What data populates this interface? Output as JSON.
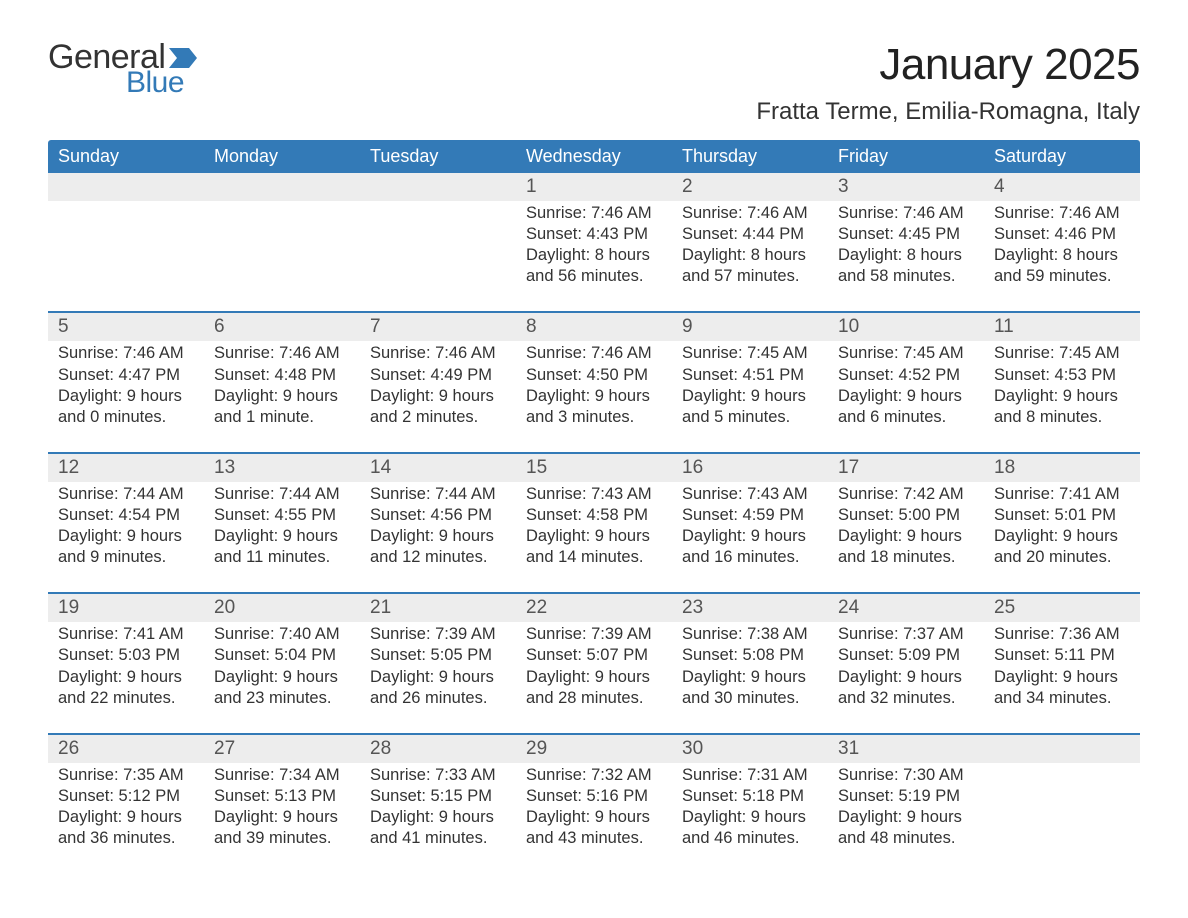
{
  "logo": {
    "general": "General",
    "blue": "Blue",
    "flag_color": "#337ab7"
  },
  "title": "January 2025",
  "location": "Fratta Terme, Emilia-Romagna, Italy",
  "colors": {
    "header_bg": "#337ab7",
    "header_text": "#ffffff",
    "daynum_bg": "#ededed",
    "row_border": "#337ab7",
    "body_text": "#333333",
    "daynum_text": "#555555",
    "background": "#ffffff"
  },
  "fonts": {
    "title_size_pt": 33,
    "location_size_pt": 18,
    "header_size_pt": 14,
    "daynum_size_pt": 14,
    "details_size_pt": 12
  },
  "day_headers": [
    "Sunday",
    "Monday",
    "Tuesday",
    "Wednesday",
    "Thursday",
    "Friday",
    "Saturday"
  ],
  "weeks": [
    [
      {
        "day": "",
        "sunrise": "",
        "sunset": "",
        "daylight": ""
      },
      {
        "day": "",
        "sunrise": "",
        "sunset": "",
        "daylight": ""
      },
      {
        "day": "",
        "sunrise": "",
        "sunset": "",
        "daylight": ""
      },
      {
        "day": "1",
        "sunrise": "Sunrise: 7:46 AM",
        "sunset": "Sunset: 4:43 PM",
        "daylight": "Daylight: 8 hours and 56 minutes."
      },
      {
        "day": "2",
        "sunrise": "Sunrise: 7:46 AM",
        "sunset": "Sunset: 4:44 PM",
        "daylight": "Daylight: 8 hours and 57 minutes."
      },
      {
        "day": "3",
        "sunrise": "Sunrise: 7:46 AM",
        "sunset": "Sunset: 4:45 PM",
        "daylight": "Daylight: 8 hours and 58 minutes."
      },
      {
        "day": "4",
        "sunrise": "Sunrise: 7:46 AM",
        "sunset": "Sunset: 4:46 PM",
        "daylight": "Daylight: 8 hours and 59 minutes."
      }
    ],
    [
      {
        "day": "5",
        "sunrise": "Sunrise: 7:46 AM",
        "sunset": "Sunset: 4:47 PM",
        "daylight": "Daylight: 9 hours and 0 minutes."
      },
      {
        "day": "6",
        "sunrise": "Sunrise: 7:46 AM",
        "sunset": "Sunset: 4:48 PM",
        "daylight": "Daylight: 9 hours and 1 minute."
      },
      {
        "day": "7",
        "sunrise": "Sunrise: 7:46 AM",
        "sunset": "Sunset: 4:49 PM",
        "daylight": "Daylight: 9 hours and 2 minutes."
      },
      {
        "day": "8",
        "sunrise": "Sunrise: 7:46 AM",
        "sunset": "Sunset: 4:50 PM",
        "daylight": "Daylight: 9 hours and 3 minutes."
      },
      {
        "day": "9",
        "sunrise": "Sunrise: 7:45 AM",
        "sunset": "Sunset: 4:51 PM",
        "daylight": "Daylight: 9 hours and 5 minutes."
      },
      {
        "day": "10",
        "sunrise": "Sunrise: 7:45 AM",
        "sunset": "Sunset: 4:52 PM",
        "daylight": "Daylight: 9 hours and 6 minutes."
      },
      {
        "day": "11",
        "sunrise": "Sunrise: 7:45 AM",
        "sunset": "Sunset: 4:53 PM",
        "daylight": "Daylight: 9 hours and 8 minutes."
      }
    ],
    [
      {
        "day": "12",
        "sunrise": "Sunrise: 7:44 AM",
        "sunset": "Sunset: 4:54 PM",
        "daylight": "Daylight: 9 hours and 9 minutes."
      },
      {
        "day": "13",
        "sunrise": "Sunrise: 7:44 AM",
        "sunset": "Sunset: 4:55 PM",
        "daylight": "Daylight: 9 hours and 11 minutes."
      },
      {
        "day": "14",
        "sunrise": "Sunrise: 7:44 AM",
        "sunset": "Sunset: 4:56 PM",
        "daylight": "Daylight: 9 hours and 12 minutes."
      },
      {
        "day": "15",
        "sunrise": "Sunrise: 7:43 AM",
        "sunset": "Sunset: 4:58 PM",
        "daylight": "Daylight: 9 hours and 14 minutes."
      },
      {
        "day": "16",
        "sunrise": "Sunrise: 7:43 AM",
        "sunset": "Sunset: 4:59 PM",
        "daylight": "Daylight: 9 hours and 16 minutes."
      },
      {
        "day": "17",
        "sunrise": "Sunrise: 7:42 AM",
        "sunset": "Sunset: 5:00 PM",
        "daylight": "Daylight: 9 hours and 18 minutes."
      },
      {
        "day": "18",
        "sunrise": "Sunrise: 7:41 AM",
        "sunset": "Sunset: 5:01 PM",
        "daylight": "Daylight: 9 hours and 20 minutes."
      }
    ],
    [
      {
        "day": "19",
        "sunrise": "Sunrise: 7:41 AM",
        "sunset": "Sunset: 5:03 PM",
        "daylight": "Daylight: 9 hours and 22 minutes."
      },
      {
        "day": "20",
        "sunrise": "Sunrise: 7:40 AM",
        "sunset": "Sunset: 5:04 PM",
        "daylight": "Daylight: 9 hours and 23 minutes."
      },
      {
        "day": "21",
        "sunrise": "Sunrise: 7:39 AM",
        "sunset": "Sunset: 5:05 PM",
        "daylight": "Daylight: 9 hours and 26 minutes."
      },
      {
        "day": "22",
        "sunrise": "Sunrise: 7:39 AM",
        "sunset": "Sunset: 5:07 PM",
        "daylight": "Daylight: 9 hours and 28 minutes."
      },
      {
        "day": "23",
        "sunrise": "Sunrise: 7:38 AM",
        "sunset": "Sunset: 5:08 PM",
        "daylight": "Daylight: 9 hours and 30 minutes."
      },
      {
        "day": "24",
        "sunrise": "Sunrise: 7:37 AM",
        "sunset": "Sunset: 5:09 PM",
        "daylight": "Daylight: 9 hours and 32 minutes."
      },
      {
        "day": "25",
        "sunrise": "Sunrise: 7:36 AM",
        "sunset": "Sunset: 5:11 PM",
        "daylight": "Daylight: 9 hours and 34 minutes."
      }
    ],
    [
      {
        "day": "26",
        "sunrise": "Sunrise: 7:35 AM",
        "sunset": "Sunset: 5:12 PM",
        "daylight": "Daylight: 9 hours and 36 minutes."
      },
      {
        "day": "27",
        "sunrise": "Sunrise: 7:34 AM",
        "sunset": "Sunset: 5:13 PM",
        "daylight": "Daylight: 9 hours and 39 minutes."
      },
      {
        "day": "28",
        "sunrise": "Sunrise: 7:33 AM",
        "sunset": "Sunset: 5:15 PM",
        "daylight": "Daylight: 9 hours and 41 minutes."
      },
      {
        "day": "29",
        "sunrise": "Sunrise: 7:32 AM",
        "sunset": "Sunset: 5:16 PM",
        "daylight": "Daylight: 9 hours and 43 minutes."
      },
      {
        "day": "30",
        "sunrise": "Sunrise: 7:31 AM",
        "sunset": "Sunset: 5:18 PM",
        "daylight": "Daylight: 9 hours and 46 minutes."
      },
      {
        "day": "31",
        "sunrise": "Sunrise: 7:30 AM",
        "sunset": "Sunset: 5:19 PM",
        "daylight": "Daylight: 9 hours and 48 minutes."
      },
      {
        "day": "",
        "sunrise": "",
        "sunset": "",
        "daylight": ""
      }
    ]
  ]
}
